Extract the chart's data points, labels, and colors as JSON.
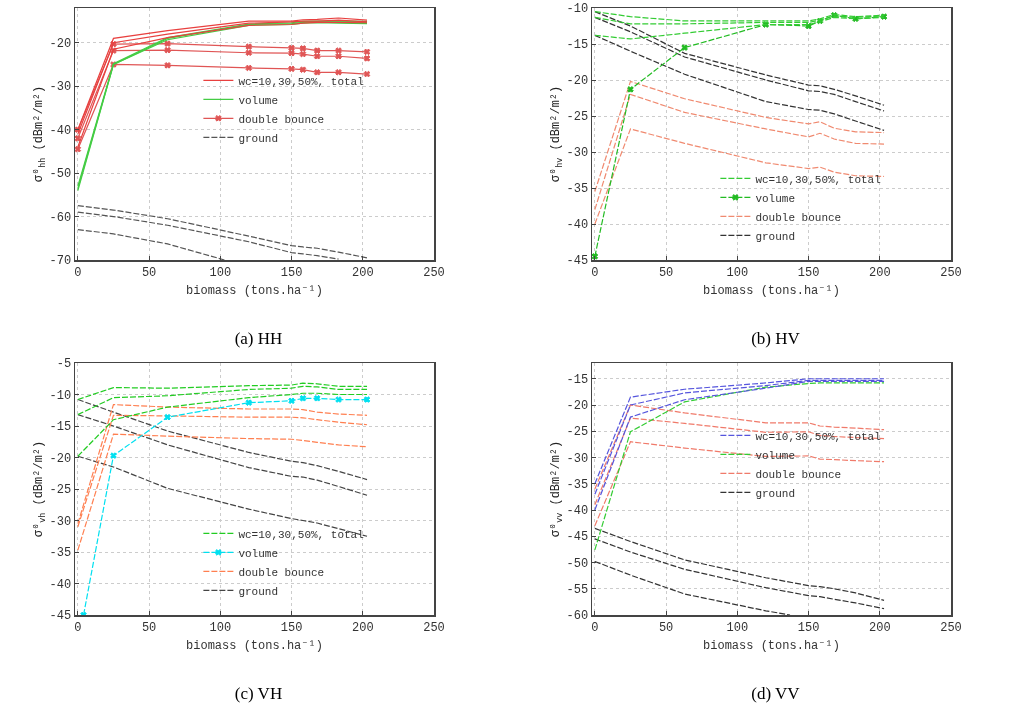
{
  "chart_data": [
    {
      "type": "line",
      "title": "(a) HH",
      "xlabel": "biomass (tons.ha⁻¹)",
      "ylabel": "σ⁰$_{hh}$ (dBm²/m²)",
      "x": [
        0,
        25,
        63,
        120,
        150,
        158,
        168,
        183,
        203
      ],
      "xlim": [
        -2,
        250
      ],
      "xticks": [
        0,
        50,
        100,
        150,
        200,
        250
      ],
      "ylim": [
        -70,
        -12
      ],
      "yticks": [
        -70,
        -60,
        -50,
        -40,
        -30,
        -20
      ],
      "grid": true,
      "legend": "right",
      "series": [
        {
          "name": "wc=10,30,50%, total",
          "color": "#e8403f",
          "line_style": "solid",
          "values": [
            -40,
            -19,
            -17.2,
            -15,
            -15,
            -14.7,
            -14.6,
            -14.3,
            -14.8
          ]
        },
        {
          "color": "#e8403f",
          "line_style": "solid",
          "values": [
            -41,
            -20,
            -18,
            -15.5,
            -15.2,
            -15,
            -15,
            -14.8,
            -15.2
          ]
        },
        {
          "color": "#e8403f",
          "line_style": "solid",
          "values": [
            -44,
            -21.5,
            -18.8,
            -16,
            -15.8,
            -15.5,
            -15.3,
            -15.3,
            -15.4
          ]
        },
        {
          "name": "volume",
          "color": "#44cc44",
          "line_style": "solid",
          "values": [
            -54,
            -25,
            -19.3,
            -16,
            -15.8,
            -15.5,
            -15.4,
            -15.5,
            -15.6
          ]
        },
        {
          "color": "#44cc44",
          "line_style": "solid",
          "values": [
            -53.5,
            -25,
            -19,
            -15.8,
            -15.6,
            -15.3,
            -15.2,
            -15.2,
            -15.3
          ]
        },
        {
          "color": "#44cc44",
          "line_style": "solid",
          "values": [
            -53,
            -24.8,
            -18.8,
            -15.7,
            -15.4,
            -15.1,
            -15,
            -15,
            -15.1
          ]
        },
        {
          "name": "double bounce",
          "color": "#e05555",
          "line_style": "solid",
          "marker": "cross",
          "values": [
            -40,
            -20.3,
            -20.2,
            -20.9,
            -21.2,
            -21.3,
            -21.8,
            -21.8,
            -22.1
          ]
        },
        {
          "color": "#e05555",
          "line_style": "solid",
          "marker": "cross",
          "values": [
            -42,
            -21.8,
            -21.7,
            -22.3,
            -22.4,
            -22.6,
            -23.1,
            -23.1,
            -23.6
          ]
        },
        {
          "color": "#e05555",
          "line_style": "solid",
          "marker": "cross",
          "values": [
            -44.5,
            -25,
            -25.2,
            -25.8,
            -26,
            -26.2,
            -26.8,
            -26.8,
            -27.2
          ]
        },
        {
          "name": "ground",
          "color": "#555555",
          "line_style": "dashed",
          "values": [
            -57.5,
            -58.5,
            -60.5,
            -64.5,
            -66.7,
            -67,
            -67.3,
            -68.2,
            -69.5
          ]
        },
        {
          "color": "#555555",
          "line_style": "dashed",
          "values": [
            -59,
            -60,
            -62,
            -65.8,
            -68.3,
            -68.6,
            -69,
            -69.8,
            null
          ]
        },
        {
          "color": "#555555",
          "line_style": "dashed",
          "x": [
            0,
            25,
            63,
            103
          ],
          "values": [
            -63,
            -64,
            -66.3,
            -70
          ]
        }
      ]
    },
    {
      "type": "line",
      "title": "(b) HV",
      "xlabel": "biomass (tons.ha⁻¹)",
      "ylabel": "σ⁰$_{hv}$ (dBm²/m²)",
      "x": [
        0,
        25,
        63,
        120,
        150,
        158,
        168,
        183,
        203
      ],
      "xlim": [
        -2,
        250
      ],
      "xticks": [
        0,
        50,
        100,
        150,
        200,
        250
      ],
      "ylim": [
        -45,
        -10
      ],
      "yticks": [
        -45,
        -40,
        -35,
        -30,
        -25,
        -20,
        -15,
        -10
      ],
      "grid": true,
      "legend": "bottom right",
      "series": [
        {
          "name": "wc=10,30,50%, total",
          "color": "#33cc33",
          "line_style": "dashed",
          "values": [
            -10.5,
            -11.2,
            -11.8,
            -11.8,
            -11.8,
            -11.5,
            -10.9,
            -11.2,
            -11
          ]
        },
        {
          "color": "#33cc33",
          "line_style": "dashed",
          "values": [
            -11.3,
            -12.2,
            -12.2,
            -12,
            -12,
            -11.7,
            -11.1,
            -11.3,
            -11.1
          ]
        },
        {
          "color": "#33cc33",
          "line_style": "dashed",
          "values": [
            -13.8,
            -14.3,
            -13.5,
            -12.3,
            -12.3,
            -11.9,
            -11.3,
            -11.5,
            -11.3
          ]
        },
        {
          "name": "volume",
          "color": "#22bb22",
          "line_style": "dashed",
          "marker": "cross",
          "values": [
            -44.5,
            -21.3,
            -15.5,
            -12.3,
            -12.5,
            -11.8,
            -11,
            -11.5,
            -11.2
          ]
        },
        {
          "name": "double bounce",
          "color": "#f08a70",
          "line_style": "dashed",
          "values": [
            -35.5,
            -20.2,
            -22.6,
            -25.2,
            -26.1,
            -25.8,
            -26.7,
            -27.2,
            -27.3
          ]
        },
        {
          "color": "#f08a70",
          "line_style": "dashed",
          "values": [
            -38,
            -22,
            -24.5,
            -26.8,
            -27.9,
            -27.4,
            -28.2,
            -28.8,
            -28.9
          ]
        },
        {
          "color": "#f08a70",
          "line_style": "dashed",
          "values": [
            -40,
            -26.8,
            -28.8,
            -31.5,
            -32.3,
            -32.1,
            -32.8,
            -33.3,
            -33.4
          ]
        },
        {
          "name": "ground",
          "color": "#333333",
          "line_style": "dashed",
          "values": [
            -10.5,
            -12.5,
            -16.3,
            -19.3,
            -20.7,
            -20.8,
            -21.3,
            -22.2,
            -23.5
          ]
        },
        {
          "color": "#333333",
          "line_style": "dashed",
          "values": [
            -11.3,
            -13.3,
            -16.8,
            -20,
            -21.5,
            -21.6,
            -22,
            -23,
            -24.3
          ]
        },
        {
          "color": "#333333",
          "line_style": "dashed",
          "values": [
            -13.8,
            -16,
            -19.2,
            -23,
            -24.1,
            -24.2,
            -24.7,
            -25.7,
            -27
          ]
        }
      ]
    },
    {
      "type": "line",
      "title": "(c) VH",
      "xlabel": "biomass (tons.ha⁻¹)",
      "ylabel": "σ⁰$_{vh}$ (dBm²/m²)",
      "x": [
        0,
        25,
        63,
        120,
        150,
        158,
        168,
        183,
        203
      ],
      "xlim": [
        -2,
        250
      ],
      "xticks": [
        0,
        50,
        100,
        150,
        200,
        250
      ],
      "ylim": [
        -45,
        -5
      ],
      "yticks": [
        -45,
        -40,
        -35,
        -30,
        -25,
        -20,
        -15,
        -10,
        -5
      ],
      "grid": true,
      "legend": "bottom right",
      "series": [
        {
          "name": "wc=10,30,50%, total",
          "color": "#22cc22",
          "line_style": "dashed",
          "values": [
            -10.8,
            -8.9,
            -9,
            -8.6,
            -8.5,
            -8.2,
            -8.3,
            -8.7,
            -8.7
          ]
        },
        {
          "color": "#22cc22",
          "line_style": "dashed",
          "values": [
            -13.2,
            -10.5,
            -10.2,
            -9.2,
            -9,
            -8.7,
            -8.8,
            -9.2,
            -9.2
          ]
        },
        {
          "color": "#22cc22",
          "line_style": "dashed",
          "values": [
            -19.8,
            -14,
            -12,
            -10.5,
            -10,
            -9.8,
            -9.8,
            -10,
            -10
          ]
        },
        {
          "name": "volume",
          "color": "#00e0f0",
          "line_style": "dashed",
          "marker": "cross",
          "x": [
            4,
            25,
            63,
            120,
            150,
            158,
            168,
            183,
            203
          ],
          "values": [
            -45,
            -19.7,
            -13.6,
            -11.3,
            -11,
            -10.6,
            -10.6,
            -10.8,
            -10.8
          ]
        },
        {
          "name": "double bounce",
          "color": "#ff7f50",
          "line_style": "dashed",
          "values": [
            -30.5,
            -11.6,
            -12,
            -12.3,
            -12.3,
            -12.4,
            -12.8,
            -13.1,
            -13.3
          ]
        },
        {
          "color": "#ff7f50",
          "line_style": "dashed",
          "values": [
            -31,
            -13.3,
            -13.4,
            -13.6,
            -13.6,
            -13.7,
            -14,
            -14.4,
            -14.8
          ]
        },
        {
          "color": "#ff7f50",
          "line_style": "dashed",
          "values": [
            -34.7,
            -16.3,
            -16.6,
            -17,
            -17.1,
            -17.3,
            -17.6,
            -18,
            -18.3
          ]
        },
        {
          "name": "ground",
          "color": "#444444",
          "line_style": "dashed",
          "values": [
            -10.8,
            -12.8,
            -15.8,
            -19.2,
            -20.6,
            -20.8,
            -21.3,
            -22.2,
            -23.5
          ]
        },
        {
          "color": "#444444",
          "line_style": "dashed",
          "values": [
            -13.2,
            -15,
            -18,
            -21.6,
            -23,
            -23.1,
            -23.6,
            -24.6,
            -26
          ]
        },
        {
          "color": "#444444",
          "line_style": "dashed",
          "values": [
            -19.8,
            -21.5,
            -24.9,
            -28.2,
            -29.7,
            -30,
            -30.4,
            -31.3,
            -32.5
          ]
        }
      ]
    },
    {
      "type": "line",
      "title": "(d) VV",
      "xlabel": "biomass (tons.ha⁻¹)",
      "ylabel": "σ⁰$_{vv}$ (dBm²/m²)",
      "x": [
        0,
        25,
        63,
        120,
        150,
        158,
        168,
        183,
        203
      ],
      "xlim": [
        -2,
        250
      ],
      "xticks": [
        0,
        50,
        100,
        150,
        200,
        250
      ],
      "ylim": [
        -60,
        -12
      ],
      "yticks": [
        -60,
        -55,
        -50,
        -45,
        -40,
        -35,
        -30,
        -25,
        -20,
        -15
      ],
      "grid": true,
      "legend": "right",
      "series": [
        {
          "name": "wc=10,30,50%, total",
          "color": "#5555dd",
          "line_style": "dashed",
          "values": [
            -35,
            -18.5,
            -17,
            -15.8,
            -15,
            -15,
            -15,
            -15,
            -15
          ]
        },
        {
          "color": "#5555dd",
          "line_style": "dashed",
          "values": [
            -37,
            -20,
            -17.7,
            -16.3,
            -15.3,
            -15.3,
            -15.3,
            -15.3,
            -15.3
          ]
        },
        {
          "color": "#5555dd",
          "line_style": "dashed",
          "values": [
            -40,
            -22.3,
            -19,
            -16.8,
            -15.5,
            -15.5,
            -15.5,
            -15.5,
            -15.5
          ]
        },
        {
          "name": "volume",
          "color": "#33cc33",
          "line_style": "dashed",
          "values": [
            -47.6,
            -25.1,
            -19.4,
            -16.6,
            -15.9,
            -15.8,
            -15.8,
            -15.8,
            -15.8
          ]
        },
        {
          "name": "double bounce",
          "color": "#f07a6a",
          "line_style": "dashed",
          "values": [
            -36,
            -20,
            -21.5,
            -23.4,
            -23.4,
            -24,
            -24.2,
            -24.4,
            -24.7
          ]
        },
        {
          "color": "#f07a6a",
          "line_style": "dashed",
          "values": [
            -39,
            -22.5,
            -23.5,
            -25.2,
            -25.1,
            -25.8,
            -26,
            -26.2,
            -26.4
          ]
        },
        {
          "color": "#f07a6a",
          "line_style": "dashed",
          "values": [
            -43,
            -27,
            -28.2,
            -29.8,
            -29.7,
            -30.3,
            -30.4,
            -30.6,
            -30.8
          ]
        },
        {
          "name": "ground",
          "color": "#333333",
          "line_style": "dashed",
          "values": [
            -43.5,
            -46,
            -49.5,
            -52.9,
            -54.4,
            -54.6,
            -55,
            -55.8,
            -57.2
          ]
        },
        {
          "color": "#333333",
          "line_style": "dashed",
          "values": [
            -45.5,
            -48,
            -51.3,
            -54.8,
            -56.3,
            -56.5,
            -57,
            -57.7,
            -58.8
          ]
        },
        {
          "color": "#333333",
          "line_style": "dashed",
          "x": [
            0,
            25,
            63,
            120,
            137
          ],
          "values": [
            -49.8,
            -52.4,
            -56,
            -59.2,
            -60
          ]
        }
      ]
    }
  ]
}
